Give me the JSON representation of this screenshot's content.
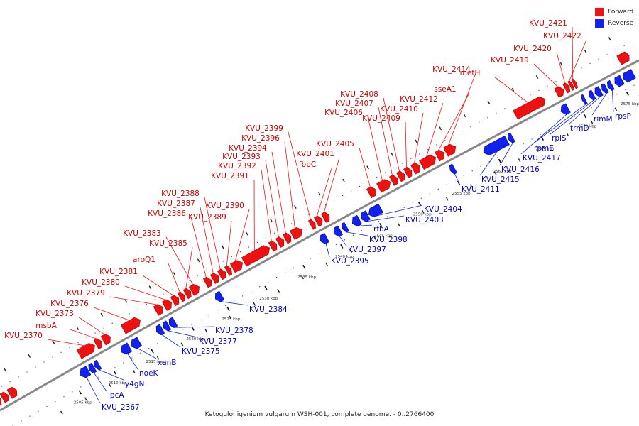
{
  "legend": {
    "forward_label": "Forward",
    "reverse_label": "Reverse",
    "forward_color": "#ee1111",
    "reverse_color": "#1122ee"
  },
  "caption": "Ketogulonigenium vulgarum WSH-001, complete genome. - 0..2766400",
  "genes": [
    {
      "name": "KVU_2367",
      "strand": "reverse"
    },
    {
      "name": "lpcA",
      "strand": "reverse"
    },
    {
      "name": "y4gN",
      "strand": "reverse"
    },
    {
      "name": "noeK",
      "strand": "reverse"
    },
    {
      "name": "xanB",
      "strand": "reverse"
    },
    {
      "name": "KVU_2375",
      "strand": "reverse"
    },
    {
      "name": "KVU_2377",
      "strand": "reverse"
    },
    {
      "name": "KVU_2378",
      "strand": "reverse"
    },
    {
      "name": "KVU_2384",
      "strand": "reverse"
    },
    {
      "name": "KVU_2395",
      "strand": "reverse"
    },
    {
      "name": "KVU_2397",
      "strand": "reverse"
    },
    {
      "name": "KVU_2398",
      "strand": "reverse"
    },
    {
      "name": "rfbA",
      "strand": "reverse"
    },
    {
      "name": "KVU_2403",
      "strand": "reverse"
    },
    {
      "name": "KVU_2404",
      "strand": "reverse"
    },
    {
      "name": "KVU_2411",
      "strand": "reverse"
    },
    {
      "name": "KVU_2415",
      "strand": "reverse"
    },
    {
      "name": "KVU_2416",
      "strand": "reverse"
    },
    {
      "name": "KVU_2417",
      "strand": "reverse"
    },
    {
      "name": "rpmE",
      "strand": "reverse"
    },
    {
      "name": "rplS",
      "strand": "reverse"
    },
    {
      "name": "trmD",
      "strand": "reverse"
    },
    {
      "name": "rimM",
      "strand": "reverse"
    },
    {
      "name": "rpsP",
      "strand": "reverse"
    },
    {
      "name": "KVU_2370",
      "strand": "forward"
    },
    {
      "name": "msbA",
      "strand": "forward"
    },
    {
      "name": "KVU_2373",
      "strand": "forward"
    },
    {
      "name": "KVU_2376",
      "strand": "forward"
    },
    {
      "name": "KVU_2379",
      "strand": "forward"
    },
    {
      "name": "KVU_2380",
      "strand": "forward"
    },
    {
      "name": "KVU_2381",
      "strand": "forward"
    },
    {
      "name": "aroQ1",
      "strand": "forward"
    },
    {
      "name": "KVU_2385",
      "strand": "forward"
    },
    {
      "name": "KVU_2383",
      "strand": "forward"
    },
    {
      "name": "KVU_2386",
      "strand": "forward"
    },
    {
      "name": "KVU_2387",
      "strand": "forward"
    },
    {
      "name": "KVU_2388",
      "strand": "forward"
    },
    {
      "name": "KVU_2389",
      "strand": "forward"
    },
    {
      "name": "KVU_2390",
      "strand": "forward"
    },
    {
      "name": "KVU_2391",
      "strand": "forward"
    },
    {
      "name": "KVU_2392",
      "strand": "forward"
    },
    {
      "name": "KVU_2393",
      "strand": "forward"
    },
    {
      "name": "KVU_2394",
      "strand": "forward"
    },
    {
      "name": "KVU_2396",
      "strand": "forward"
    },
    {
      "name": "KVU_2399",
      "strand": "forward"
    },
    {
      "name": "fbpC",
      "strand": "forward"
    },
    {
      "name": "KVU_2401",
      "strand": "forward"
    },
    {
      "name": "KVU_2405",
      "strand": "forward"
    },
    {
      "name": "KVU_2406",
      "strand": "forward"
    },
    {
      "name": "KVU_2407",
      "strand": "forward"
    },
    {
      "name": "KVU_2408",
      "strand": "forward"
    },
    {
      "name": "KVU_2409",
      "strand": "forward"
    },
    {
      "name": "KVU_2410",
      "strand": "forward"
    },
    {
      "name": "KVU_2412",
      "strand": "forward"
    },
    {
      "name": "sseA1",
      "strand": "forward"
    },
    {
      "name": "metH",
      "strand": "forward"
    },
    {
      "name": "KVU_2414",
      "strand": "forward"
    },
    {
      "name": "KVU_2419",
      "strand": "forward"
    },
    {
      "name": "KVU_2420",
      "strand": "forward"
    },
    {
      "name": "KVU_2422",
      "strand": "forward"
    },
    {
      "name": "KVU_2421",
      "strand": "forward"
    }
  ],
  "ticks": [
    "2505 kbp",
    "2510 kbp",
    "2515 kbp",
    "2520 kbp",
    "2525 kbp",
    "2530 kbp",
    "2535 kbp",
    "2540 kbp",
    "2545 kbp",
    "2550 kbp",
    "2555 kbp",
    "2560 kbp",
    "2565 kbp",
    "2570 kbp",
    "2575 kbp"
  ]
}
